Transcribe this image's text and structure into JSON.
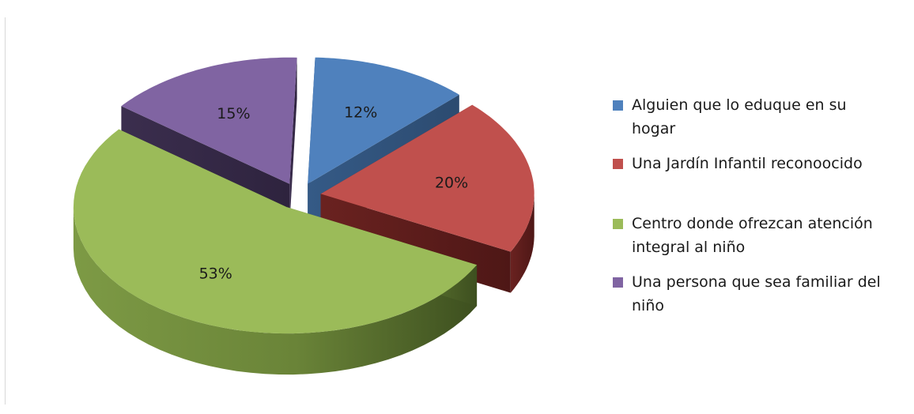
{
  "chart_data": {
    "type": "pie",
    "title": "",
    "slices": [
      {
        "label": "Alguien que lo eduque en su hogar",
        "value": 12,
        "display": "12%",
        "color": "#4f81bd"
      },
      {
        "label": "Una Jardín Infantil reconoocido",
        "value": 20,
        "display": "20%",
        "color": "#c0504d"
      },
      {
        "label": "Centro donde ofrezcan atención integral al niño",
        "value": 53,
        "display": "53%",
        "color": "#9bbb59"
      },
      {
        "label": "Una persona que sea familiar del niño",
        "value": 15,
        "display": "15%",
        "color": "#8064a2"
      }
    ],
    "legend_position": "right",
    "exploded": true,
    "style": "3d"
  },
  "legend": [
    {
      "line1": "Alguien que lo eduque en su",
      "line2": "hogar"
    },
    {
      "line1": "Una Jardín Infantil reconoocido",
      "line2": ""
    },
    {
      "line1": "Centro donde ofrezcan atención",
      "line2": "integral al niño"
    },
    {
      "line1": "Una persona que sea familiar del",
      "line2": "niño"
    }
  ]
}
